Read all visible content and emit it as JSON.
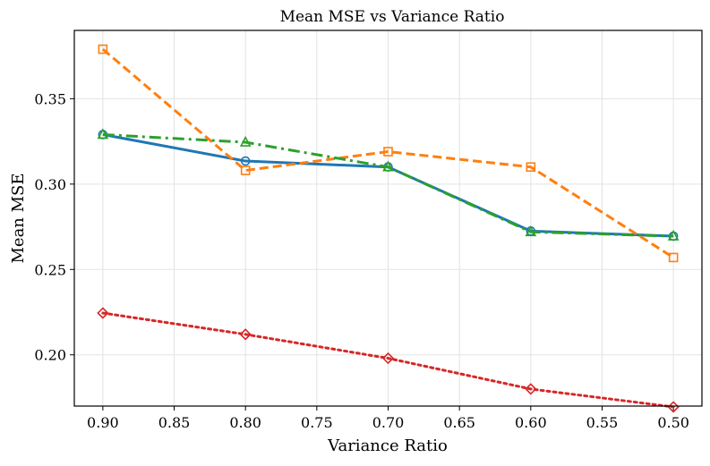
{
  "chart_data": {
    "type": "line",
    "title": "Mean MSE vs Variance Ratio",
    "xlabel": "Variance Ratio",
    "ylabel": "Mean MSE",
    "x_reversed": true,
    "xlim": [
      0.92,
      0.48
    ],
    "ylim": [
      0.17,
      0.39
    ],
    "grid": true,
    "xticks": [
      0.9,
      0.85,
      0.8,
      0.75,
      0.7,
      0.65,
      0.6,
      0.55,
      0.5
    ],
    "xtick_labels": [
      "0.90",
      "0.85",
      "0.80",
      "0.75",
      "0.70",
      "0.65",
      "0.60",
      "0.55",
      "0.50"
    ],
    "yticks": [
      0.2,
      0.25,
      0.3,
      0.35
    ],
    "ytick_labels": [
      "0.20",
      "0.25",
      "0.30",
      "0.35"
    ],
    "x": [
      0.9,
      0.8,
      0.7,
      0.6,
      0.5
    ],
    "series": [
      {
        "values": [
          0.329,
          0.3135,
          0.31,
          0.2725,
          0.2695
        ],
        "color": "#1f77b4",
        "marker": "circle",
        "linestyle": "solid"
      },
      {
        "values": [
          0.379,
          0.308,
          0.319,
          0.31,
          0.257
        ],
        "color": "#ff7f0e",
        "marker": "square",
        "linestyle": "dashed"
      },
      {
        "values": [
          0.329,
          0.3245,
          0.31,
          0.272,
          0.2695
        ],
        "color": "#2ca02c",
        "marker": "triangle",
        "linestyle": "dashdot"
      },
      {
        "values": [
          0.2245,
          0.212,
          0.198,
          0.18,
          0.1695
        ],
        "color": "#d62728",
        "marker": "diamond",
        "linestyle": "dotted"
      }
    ]
  }
}
